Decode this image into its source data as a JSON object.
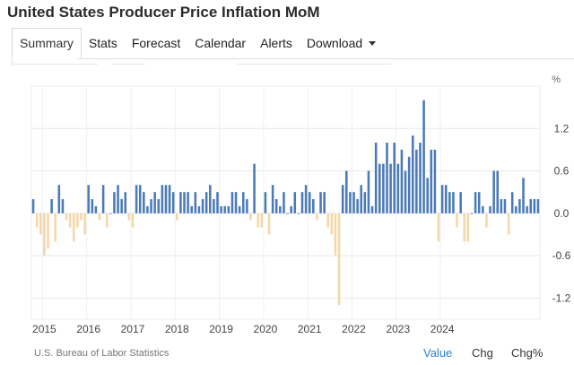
{
  "page": {
    "title": "United States Producer Price Inflation MoM"
  },
  "tabs": [
    {
      "label": "Summary",
      "active": true
    },
    {
      "label": "Stats"
    },
    {
      "label": "Forecast"
    },
    {
      "label": "Calendar"
    },
    {
      "label": "Alerts"
    },
    {
      "label": "Download",
      "dropdown": true
    }
  ],
  "footer": {
    "source": "U.S. Bureau of Labor Statistics",
    "buttons": [
      {
        "label": "Value",
        "active": true
      },
      {
        "label": "Chg"
      },
      {
        "label": "Chg%"
      }
    ]
  },
  "colors": {
    "positive": "#4a7ab8",
    "negative": "#f3d7a8",
    "active_link": "#2f7fd1",
    "grid": "#e8e8e8"
  },
  "chart_data": {
    "type": "bar",
    "unit_label": "%",
    "x_start": "2014-10",
    "frequency": "monthly",
    "x_tick_labels": [
      "2015",
      "2016",
      "2017",
      "2018",
      "2019",
      "2020",
      "2021",
      "2022",
      "2023",
      "2024"
    ],
    "y_tick_labels": [
      "1.2",
      "0.6",
      "0.0",
      "-0.6",
      "-1.2"
    ],
    "ylim": [
      -1.5,
      1.8
    ],
    "grid": true,
    "values": [
      0.2,
      -0.2,
      -0.3,
      -0.6,
      -0.5,
      0.2,
      -0.4,
      0.4,
      0.2,
      -0.1,
      -0.2,
      -0.4,
      -0.2,
      -0.1,
      -0.3,
      0.4,
      0.2,
      0.1,
      -0.1,
      0.4,
      -0.2,
      0.0,
      0.3,
      0.4,
      0.2,
      0.3,
      -0.1,
      -0.2,
      0.4,
      0.4,
      0.3,
      0.1,
      0.2,
      0.3,
      0.2,
      0.4,
      0.4,
      0.4,
      0.3,
      -0.1,
      0.3,
      0.3,
      0.3,
      0.1,
      0.3,
      0.1,
      0.2,
      0.3,
      0.4,
      0.2,
      0.3,
      0.1,
      0.1,
      0.1,
      0.3,
      0.3,
      0.1,
      0.3,
      0.2,
      -0.1,
      0.7,
      -0.2,
      -0.2,
      0.3,
      -0.3,
      0.4,
      0.2,
      0.1,
      0.3,
      0.0,
      0.1,
      0.3,
      0.0,
      0.3,
      0.4,
      0.3,
      0.2,
      -0.1,
      0.3,
      0.3,
      -0.2,
      -0.3,
      -0.6,
      -1.3,
      0.4,
      0.6,
      0.3,
      0.3,
      0.2,
      0.4,
      0.3,
      0.6,
      0.1,
      1.0,
      0.7,
      0.7,
      1.0,
      0.7,
      1.0,
      0.7,
      0.9,
      0.6,
      0.8,
      1.1,
      0.9,
      1.0,
      1.6,
      0.5,
      0.9,
      0.9,
      -0.4,
      0.4,
      0.4,
      0.3,
      0.3,
      -0.2,
      0.3,
      -0.4,
      -0.4,
      0.0,
      0.3,
      0.3,
      0.1,
      -0.2,
      0.1,
      0.6,
      0.6,
      0.2,
      0.2,
      -0.3,
      0.3,
      0.1,
      0.2,
      0.5,
      0.1,
      0.2,
      0.2,
      0.2
    ]
  }
}
